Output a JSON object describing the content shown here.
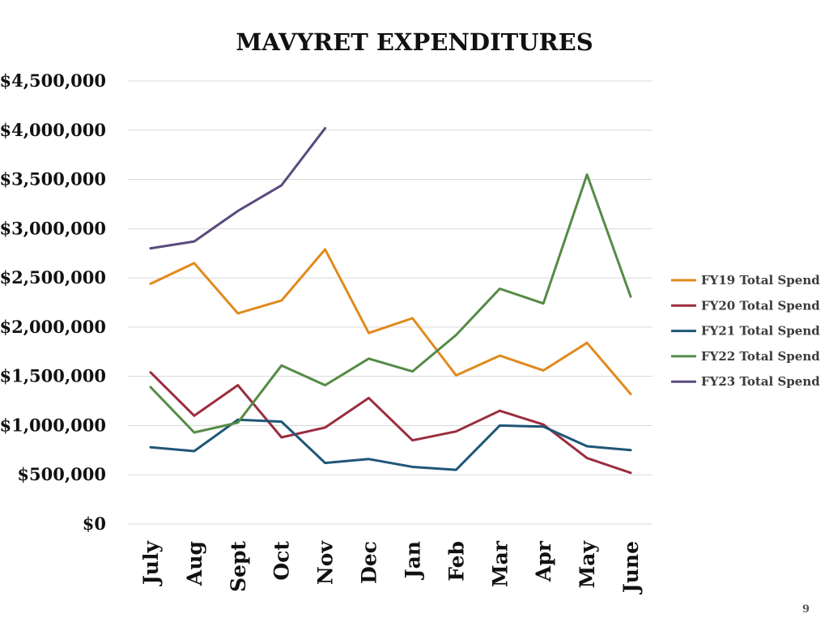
{
  "chart_data": {
    "type": "line",
    "title": "MAVYRET EXPENDITURES",
    "xlabel": "",
    "ylabel": "",
    "categories": [
      "July",
      "Aug",
      "Sept",
      "Oct",
      "Nov",
      "Dec",
      "Jan",
      "Feb",
      "Mar",
      "Apr",
      "May",
      "June"
    ],
    "ylim": [
      0,
      4500000
    ],
    "yticks": [
      0,
      500000,
      1000000,
      1500000,
      2000000,
      2500000,
      3000000,
      3500000,
      4000000,
      4500000
    ],
    "ytick_labels": [
      "$0",
      "$500,000",
      "$1,000,000",
      "$1,500,000",
      "$2,000,000",
      "$2,500,000",
      "$3,000,000",
      "$3,500,000",
      "$4,000,000",
      "$4,500,000"
    ],
    "grid": true,
    "legend_position": "right",
    "series": [
      {
        "name": "FY19 Total Spend",
        "color": "#e08a1e",
        "values": [
          2440000,
          2650000,
          2140000,
          2270000,
          2790000,
          1940000,
          2090000,
          1510000,
          1710000,
          1560000,
          1840000,
          1320000
        ]
      },
      {
        "name": "FY20 Total Spend",
        "color": "#9b2d3f",
        "values": [
          1540000,
          1100000,
          1410000,
          880000,
          980000,
          1280000,
          850000,
          940000,
          1150000,
          1010000,
          670000,
          520000
        ]
      },
      {
        "name": "FY21 Total Spend",
        "color": "#1f5677",
        "values": [
          780000,
          740000,
          1060000,
          1040000,
          620000,
          660000,
          580000,
          550000,
          1000000,
          990000,
          790000,
          750000
        ]
      },
      {
        "name": "FY22 Total Spend",
        "color": "#548b46",
        "values": [
          1390000,
          930000,
          1030000,
          1610000,
          1410000,
          1680000,
          1550000,
          1920000,
          2390000,
          2240000,
          3550000,
          2310000
        ]
      },
      {
        "name": "FY23 Total Spend",
        "color": "#5a4a7e",
        "values": [
          2800000,
          2870000,
          3180000,
          3440000,
          4020000,
          null,
          null,
          null,
          null,
          null,
          null,
          null
        ]
      }
    ]
  },
  "page_number": "9"
}
